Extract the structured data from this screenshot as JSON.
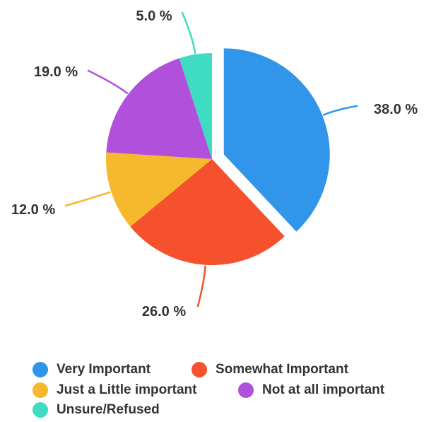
{
  "chart_data": {
    "type": "pie",
    "exploded_slice": "Very Important",
    "series": [
      {
        "name": "Very Important",
        "value": 38.0,
        "label": "38.0 %",
        "color": "#3196EA"
      },
      {
        "name": "Somewhat Important",
        "value": 26.0,
        "label": "26.0 %",
        "color": "#F5512C"
      },
      {
        "name": "Just a Little important",
        "value": 12.0,
        "label": "12.0 %",
        "color": "#F6B92D"
      },
      {
        "name": "Not at all important",
        "value": 19.0,
        "label": "19.0 %",
        "color": "#B150DB"
      },
      {
        "name": "Unsure/Refused",
        "value": 5.0,
        "label": "5.0 %",
        "color": "#3EDCC2"
      }
    ],
    "legend_position": "bottom"
  }
}
